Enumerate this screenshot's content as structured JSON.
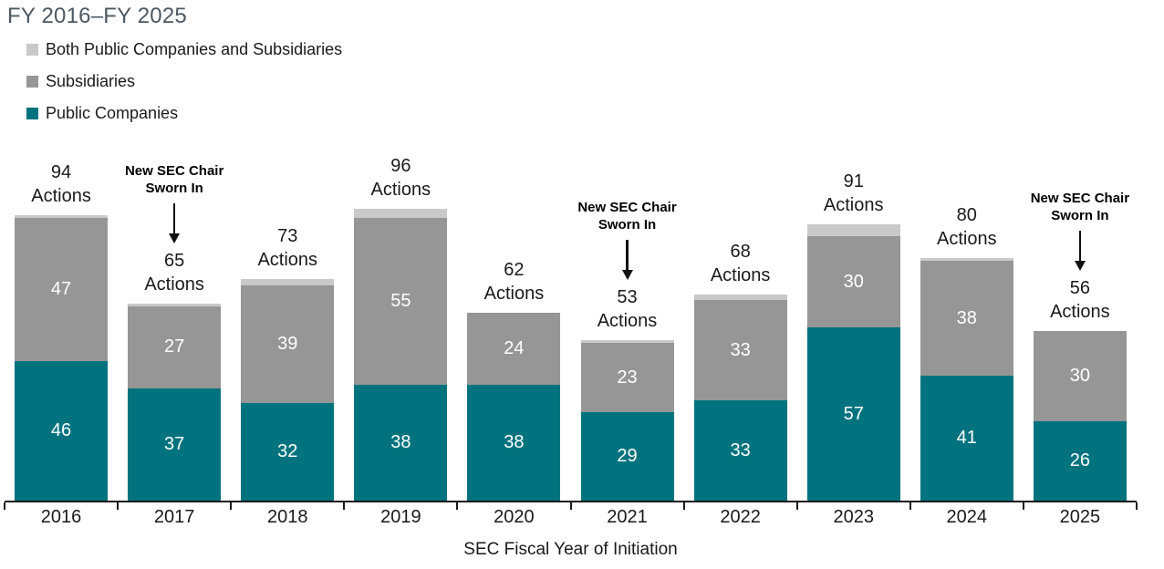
{
  "title": "FY 2016–FY 2025",
  "legend": {
    "items": [
      {
        "label": "Both Public Companies and Subsidiaries",
        "color": "#c9c9c9"
      },
      {
        "label": "Subsidiaries",
        "color": "#969696"
      },
      {
        "label": "Public Companies",
        "color": "#00737e"
      }
    ]
  },
  "x_axis_title": "SEC Fiscal Year of Initiation",
  "colors": {
    "public_companies": "#00737e",
    "subsidiaries": "#969696",
    "both": "#c9c9c9",
    "axis": "#1a1a1a",
    "title_text": "#4d5862"
  },
  "chart_data": {
    "type": "bar",
    "stacked": true,
    "title": "FY 2016–FY 2025",
    "xlabel": "SEC Fiscal Year of Initiation",
    "ylabel": "",
    "grid": false,
    "legend_position": "top-left",
    "categories": [
      "2016",
      "2017",
      "2018",
      "2019",
      "2020",
      "2021",
      "2022",
      "2023",
      "2024",
      "2025"
    ],
    "series": [
      {
        "name": "Public Companies",
        "color": "#00737e",
        "show_labels": true,
        "values": [
          46,
          37,
          32,
          38,
          38,
          29,
          33,
          57,
          41,
          26
        ]
      },
      {
        "name": "Subsidiaries",
        "color": "#969696",
        "show_labels": true,
        "values": [
          47,
          27,
          39,
          55,
          24,
          23,
          33,
          30,
          38,
          30
        ]
      },
      {
        "name": "Both Public Companies and Subsidiaries",
        "color": "#c9c9c9",
        "show_labels": false,
        "values": [
          1,
          1,
          2,
          3,
          0,
          1,
          2,
          4,
          1,
          0
        ]
      }
    ],
    "totals": [
      94,
      65,
      73,
      96,
      62,
      53,
      68,
      91,
      80,
      56
    ],
    "total_label_suffix": "Actions",
    "annotations": [
      {
        "category": "2017",
        "lines": [
          "New SEC Chair",
          "Sworn In"
        ]
      },
      {
        "category": "2021",
        "lines": [
          "New SEC Chair",
          "Sworn In"
        ]
      },
      {
        "category": "2025",
        "lines": [
          "New SEC Chair",
          "Sworn In"
        ]
      }
    ],
    "ylim": [
      0,
      100
    ]
  }
}
